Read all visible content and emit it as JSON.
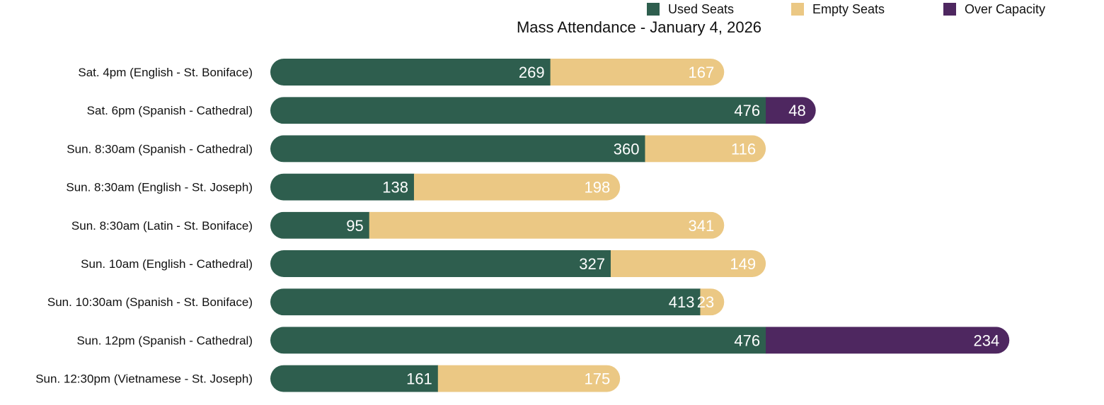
{
  "chart_data": {
    "type": "bar",
    "orientation": "horizontal",
    "stacked": true,
    "title": "Mass Attendance - January 4, 2026",
    "legend_position": "top-right",
    "grid": false,
    "categories": [
      "Sat. 4pm (English - St. Boniface)",
      "Sat. 6pm (Spanish - Cathedral)",
      "Sun. 8:30am (Spanish - Cathedral)",
      "Sun. 8:30am (English - St. Joseph)",
      "Sun. 8:30am (Latin - St. Boniface)",
      "Sun. 10am (English - Cathedral)",
      "Sun. 10:30am (Spanish - St. Boniface)",
      "Sun. 12pm (Spanish - Cathedral)",
      "Sun. 12:30pm (Vietnamese - St. Joseph)"
    ],
    "series": [
      {
        "name": "Used Seats",
        "color": "#2e5e4e",
        "label_color": "#ffffff",
        "values": [
          269,
          476,
          360,
          138,
          95,
          327,
          413,
          476,
          161
        ]
      },
      {
        "name": "Empty Seats",
        "color": "#ebc884",
        "label_color": "#ffffff",
        "values": [
          167,
          0,
          116,
          198,
          341,
          149,
          23,
          0,
          175
        ]
      },
      {
        "name": "Over Capacity",
        "color": "#4e2760",
        "label_color": "#ffffff",
        "values": [
          0,
          48,
          0,
          0,
          0,
          0,
          0,
          234,
          0
        ]
      }
    ],
    "xlim": [
      0,
      710
    ]
  }
}
